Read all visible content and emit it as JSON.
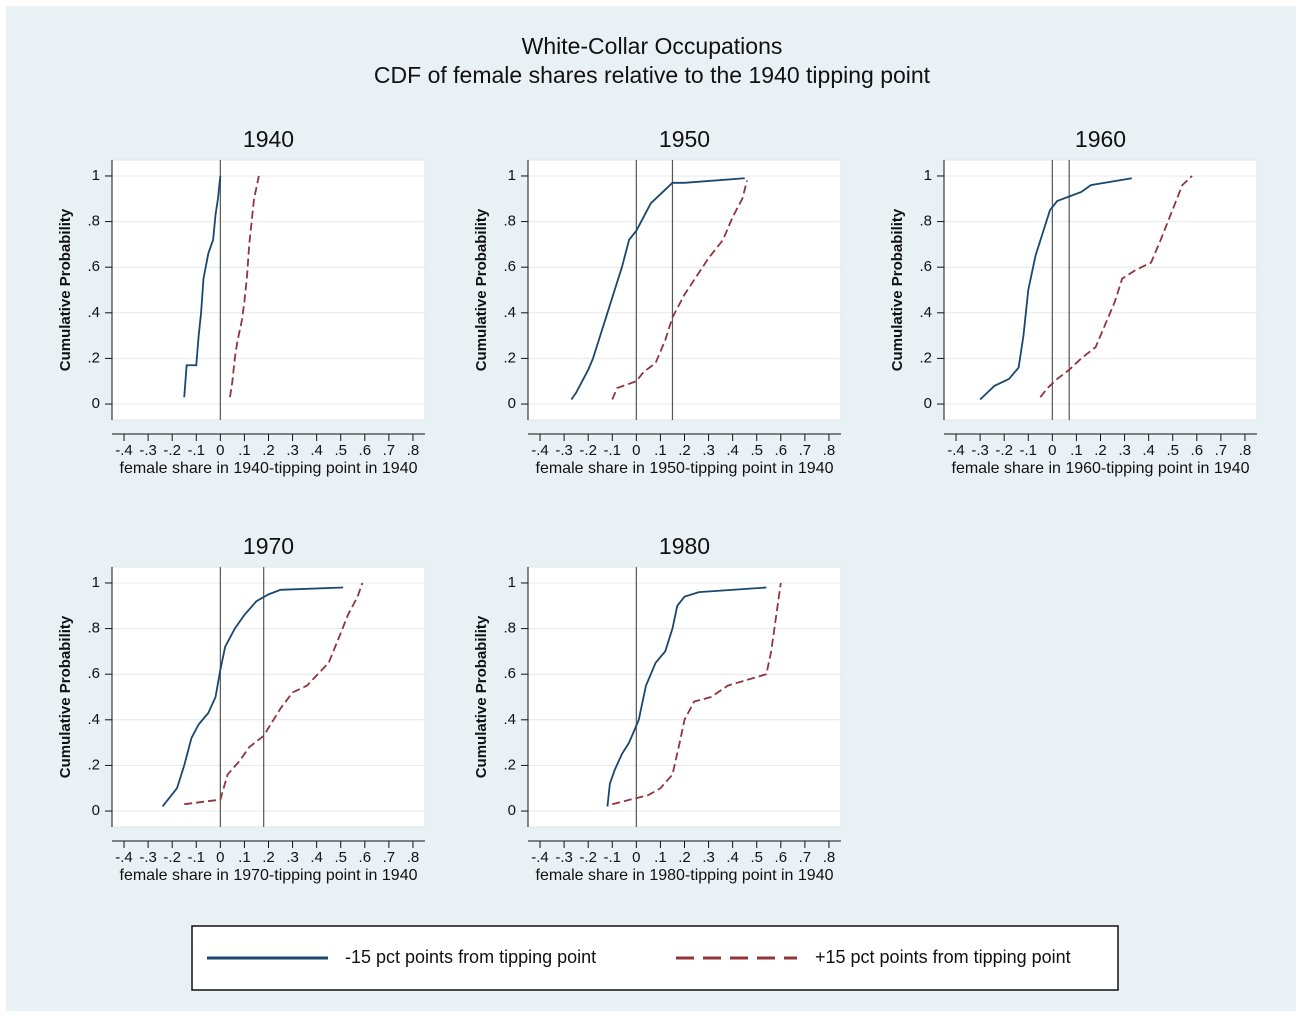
{
  "title": "White-Collar Occupations",
  "subtitle": "CDF of female shares relative to the 1940 tipping point",
  "chart_data": [
    {
      "type": "line",
      "title": "1940",
      "x_label": "female share in 1940-tipping point in 1940",
      "y_label": "Cumulative Probability",
      "xlim": [
        -0.45,
        0.85
      ],
      "ylim": [
        -0.07,
        1.07
      ],
      "xticks": [
        {
          "value": -0.4,
          "label": "-.4"
        },
        {
          "value": -0.3,
          "label": "-.3"
        },
        {
          "value": -0.2,
          "label": "-.2"
        },
        {
          "value": -0.1,
          "label": "-.1"
        },
        0,
        {
          "value": 0.1,
          "label": ".1"
        },
        {
          "value": 0.2,
          "label": ".2"
        },
        {
          "value": 0.3,
          "label": ".3"
        },
        {
          "value": 0.4,
          "label": ".4"
        },
        {
          "value": 0.5,
          "label": ".5"
        },
        {
          "value": 0.6,
          "label": ".6"
        },
        {
          "value": 0.7,
          "label": ".7"
        },
        {
          "value": 0.8,
          "label": ".8"
        }
      ],
      "yticks": [
        0,
        {
          "value": 0.2,
          "label": ".2"
        },
        {
          "value": 0.4,
          "label": ".4"
        },
        {
          "value": 0.6,
          "label": ".6"
        },
        {
          "value": 0.8,
          "label": ".8"
        },
        1
      ],
      "grid": true,
      "xlines": [
        0
      ],
      "series": [
        {
          "name": "-15 pct points from tipping point",
          "color": "#1a476f",
          "dash": false,
          "x": [
            -0.15,
            -0.14,
            -0.1,
            -0.09,
            -0.08,
            -0.07,
            -0.05,
            -0.03,
            -0.02,
            -0.01,
            0
          ],
          "values": [
            0.03,
            0.17,
            0.17,
            0.3,
            0.4,
            0.55,
            0.66,
            0.72,
            0.83,
            0.9,
            1
          ]
        },
        {
          "name": "+15 pct points from tipping point",
          "color": "#90353b",
          "dash": true,
          "x": [
            0.04,
            0.05,
            0.06,
            0.07,
            0.09,
            0.1,
            0.11,
            0.12,
            0.13,
            0.14,
            0.16
          ],
          "values": [
            0.03,
            0.1,
            0.2,
            0.27,
            0.37,
            0.45,
            0.55,
            0.7,
            0.8,
            0.9,
            1
          ]
        }
      ]
    },
    {
      "type": "line",
      "title": "1950",
      "x_label": "female share in 1950-tipping point in 1940",
      "y_label": "Cumulative Probability",
      "xlim": [
        -0.45,
        0.85
      ],
      "ylim": [
        -0.07,
        1.07
      ],
      "xticks": [
        {
          "value": -0.4,
          "label": "-.4"
        },
        {
          "value": -0.3,
          "label": "-.3"
        },
        {
          "value": -0.2,
          "label": "-.2"
        },
        {
          "value": -0.1,
          "label": "-.1"
        },
        0,
        {
          "value": 0.1,
          "label": ".1"
        },
        {
          "value": 0.2,
          "label": ".2"
        },
        {
          "value": 0.3,
          "label": ".3"
        },
        {
          "value": 0.4,
          "label": ".4"
        },
        {
          "value": 0.5,
          "label": ".5"
        },
        {
          "value": 0.6,
          "label": ".6"
        },
        {
          "value": 0.7,
          "label": ".7"
        },
        {
          "value": 0.8,
          "label": ".8"
        }
      ],
      "yticks": [
        0,
        {
          "value": 0.2,
          "label": ".2"
        },
        {
          "value": 0.4,
          "label": ".4"
        },
        {
          "value": 0.6,
          "label": ".6"
        },
        {
          "value": 0.8,
          "label": ".8"
        },
        1
      ],
      "grid": true,
      "xlines": [
        0,
        0.15
      ],
      "series": [
        {
          "name": "-15 pct points from tipping point",
          "color": "#1a476f",
          "dash": false,
          "x": [
            -0.27,
            -0.25,
            -0.23,
            -0.2,
            -0.18,
            -0.15,
            -0.12,
            -0.09,
            -0.06,
            -0.03,
            0,
            0.03,
            0.06,
            0.1,
            0.15,
            0.2,
            0.45
          ],
          "values": [
            0.02,
            0.05,
            0.09,
            0.15,
            0.2,
            0.3,
            0.4,
            0.5,
            0.6,
            0.72,
            0.76,
            0.82,
            0.88,
            0.92,
            0.97,
            0.97,
            0.99
          ]
        },
        {
          "name": "+15 pct points from tipping point",
          "color": "#90353b",
          "dash": true,
          "x": [
            -0.1,
            -0.08,
            0,
            0.03,
            0.08,
            0.12,
            0.15,
            0.2,
            0.25,
            0.3,
            0.36,
            0.4,
            0.44,
            0.46
          ],
          "values": [
            0.02,
            0.07,
            0.1,
            0.14,
            0.18,
            0.28,
            0.38,
            0.48,
            0.56,
            0.64,
            0.72,
            0.82,
            0.9,
            0.98
          ]
        }
      ]
    },
    {
      "type": "line",
      "title": "1960",
      "x_label": "female share in 1960-tipping point in 1940",
      "y_label": "Cumulative Probability",
      "xlim": [
        -0.45,
        0.85
      ],
      "ylim": [
        -0.07,
        1.07
      ],
      "xticks": [
        {
          "value": -0.4,
          "label": "-.4"
        },
        {
          "value": -0.3,
          "label": "-.3"
        },
        {
          "value": -0.2,
          "label": "-.2"
        },
        {
          "value": -0.1,
          "label": "-.1"
        },
        0,
        {
          "value": 0.1,
          "label": ".1"
        },
        {
          "value": 0.2,
          "label": ".2"
        },
        {
          "value": 0.3,
          "label": ".3"
        },
        {
          "value": 0.4,
          "label": ".4"
        },
        {
          "value": 0.5,
          "label": ".5"
        },
        {
          "value": 0.6,
          "label": ".6"
        },
        {
          "value": 0.7,
          "label": ".7"
        },
        {
          "value": 0.8,
          "label": ".8"
        }
      ],
      "yticks": [
        0,
        {
          "value": 0.2,
          "label": ".2"
        },
        {
          "value": 0.4,
          "label": ".4"
        },
        {
          "value": 0.6,
          "label": ".6"
        },
        {
          "value": 0.8,
          "label": ".8"
        },
        1
      ],
      "grid": true,
      "xlines": [
        0,
        0.07
      ],
      "series": [
        {
          "name": "-15 pct points from tipping point",
          "color": "#1a476f",
          "dash": false,
          "x": [
            -0.3,
            -0.27,
            -0.24,
            -0.18,
            -0.14,
            -0.12,
            -0.1,
            -0.07,
            -0.04,
            -0.01,
            0.02,
            0.12,
            0.16,
            0.33
          ],
          "values": [
            0.02,
            0.05,
            0.08,
            0.11,
            0.16,
            0.3,
            0.5,
            0.65,
            0.75,
            0.85,
            0.89,
            0.93,
            0.96,
            0.99
          ]
        },
        {
          "name": "+15 pct points from tipping point",
          "color": "#90353b",
          "dash": true,
          "x": [
            -0.05,
            -0.02,
            0.02,
            0.07,
            0.12,
            0.18,
            0.22,
            0.26,
            0.29,
            0.35,
            0.41,
            0.45,
            0.48,
            0.51,
            0.54,
            0.58
          ],
          "values": [
            0.03,
            0.07,
            0.11,
            0.15,
            0.2,
            0.25,
            0.35,
            0.45,
            0.55,
            0.59,
            0.62,
            0.72,
            0.8,
            0.88,
            0.96,
            1
          ]
        }
      ]
    },
    {
      "type": "line",
      "title": "1970",
      "x_label": "female share in 1970-tipping point in 1940",
      "y_label": "Cumulative Probability",
      "xlim": [
        -0.45,
        0.85
      ],
      "ylim": [
        -0.07,
        1.07
      ],
      "xticks": [
        {
          "value": -0.4,
          "label": "-.4"
        },
        {
          "value": -0.3,
          "label": "-.3"
        },
        {
          "value": -0.2,
          "label": "-.2"
        },
        {
          "value": -0.1,
          "label": "-.1"
        },
        0,
        {
          "value": 0.1,
          "label": ".1"
        },
        {
          "value": 0.2,
          "label": ".2"
        },
        {
          "value": 0.3,
          "label": ".3"
        },
        {
          "value": 0.4,
          "label": ".4"
        },
        {
          "value": 0.5,
          "label": ".5"
        },
        {
          "value": 0.6,
          "label": ".6"
        },
        {
          "value": 0.7,
          "label": ".7"
        },
        {
          "value": 0.8,
          "label": ".8"
        }
      ],
      "yticks": [
        0,
        {
          "value": 0.2,
          "label": ".2"
        },
        {
          "value": 0.4,
          "label": ".4"
        },
        {
          "value": 0.6,
          "label": ".6"
        },
        {
          "value": 0.8,
          "label": ".8"
        },
        1
      ],
      "grid": true,
      "xlines": [
        0,
        0.18
      ],
      "series": [
        {
          "name": "-15 pct points from tipping point",
          "color": "#1a476f",
          "dash": false,
          "x": [
            -0.24,
            -0.21,
            -0.18,
            -0.15,
            -0.12,
            -0.09,
            -0.05,
            -0.02,
            0,
            0.02,
            0.06,
            0.1,
            0.15,
            0.2,
            0.25,
            0.51
          ],
          "values": [
            0.02,
            0.06,
            0.1,
            0.2,
            0.32,
            0.38,
            0.43,
            0.5,
            0.62,
            0.72,
            0.8,
            0.86,
            0.92,
            0.95,
            0.97,
            0.98
          ]
        },
        {
          "name": "+15 pct points from tipping point",
          "color": "#90353b",
          "dash": true,
          "x": [
            -0.15,
            0,
            0.03,
            0.08,
            0.12,
            0.18,
            0.25,
            0.3,
            0.36,
            0.45,
            0.5,
            0.53,
            0.57,
            0.59
          ],
          "values": [
            0.03,
            0.05,
            0.16,
            0.22,
            0.28,
            0.33,
            0.45,
            0.52,
            0.55,
            0.65,
            0.78,
            0.86,
            0.94,
            1
          ]
        }
      ]
    },
    {
      "type": "line",
      "title": "1980",
      "x_label": "female share in 1980-tipping point in 1940",
      "y_label": "Cumulative Probability",
      "xlim": [
        -0.45,
        0.85
      ],
      "ylim": [
        -0.07,
        1.07
      ],
      "xticks": [
        {
          "value": -0.4,
          "label": "-.4"
        },
        {
          "value": -0.3,
          "label": "-.3"
        },
        {
          "value": -0.2,
          "label": "-.2"
        },
        {
          "value": -0.1,
          "label": "-.1"
        },
        0,
        {
          "value": 0.1,
          "label": ".1"
        },
        {
          "value": 0.2,
          "label": ".2"
        },
        {
          "value": 0.3,
          "label": ".3"
        },
        {
          "value": 0.4,
          "label": ".4"
        },
        {
          "value": 0.5,
          "label": ".5"
        },
        {
          "value": 0.6,
          "label": ".6"
        },
        {
          "value": 0.7,
          "label": ".7"
        },
        {
          "value": 0.8,
          "label": ".8"
        }
      ],
      "yticks": [
        0,
        {
          "value": 0.2,
          "label": ".2"
        },
        {
          "value": 0.4,
          "label": ".4"
        },
        {
          "value": 0.6,
          "label": ".6"
        },
        {
          "value": 0.8,
          "label": ".8"
        },
        1
      ],
      "grid": true,
      "xlines": [
        0
      ],
      "series": [
        {
          "name": "-15 pct points from tipping point",
          "color": "#1a476f",
          "dash": false,
          "x": [
            -0.12,
            -0.11,
            -0.09,
            -0.06,
            -0.03,
            0.01,
            0.04,
            0.08,
            0.12,
            0.15,
            0.17,
            0.2,
            0.26,
            0.54
          ],
          "values": [
            0.02,
            0.12,
            0.18,
            0.25,
            0.3,
            0.4,
            0.55,
            0.65,
            0.7,
            0.8,
            0.9,
            0.94,
            0.96,
            0.98
          ]
        },
        {
          "name": "+15 pct points from tipping point",
          "color": "#90353b",
          "dash": true,
          "x": [
            -0.1,
            0.05,
            0.1,
            0.15,
            0.18,
            0.2,
            0.24,
            0.31,
            0.38,
            0.54,
            0.56,
            0.58,
            0.6
          ],
          "values": [
            0.03,
            0.07,
            0.1,
            0.16,
            0.3,
            0.4,
            0.48,
            0.5,
            0.55,
            0.6,
            0.7,
            0.85,
            1
          ]
        }
      ]
    }
  ]
}
